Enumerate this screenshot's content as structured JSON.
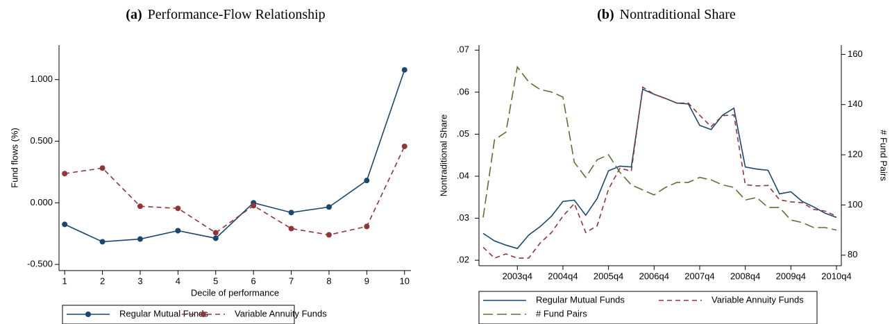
{
  "chart_data": [
    {
      "type": "line",
      "panel_label": "(a)",
      "title": "Performance-Flow Relationship",
      "xlabel": "Decile of performance",
      "ylabel": "Fund flows (%)",
      "x": [
        1,
        2,
        3,
        4,
        5,
        6,
        7,
        8,
        9,
        10
      ],
      "xlim": [
        0.85,
        10.17
      ],
      "xticks": [
        1,
        2,
        3,
        4,
        5,
        6,
        7,
        8,
        9,
        10
      ],
      "ylim": [
        -0.55,
        1.28
      ],
      "yticks": [
        {
          "value": -0.5,
          "label": "-0.500"
        },
        {
          "value": 0,
          "label": "0.000"
        },
        {
          "value": 0.5,
          "label": "0.500"
        },
        {
          "value": 1,
          "label": "1.000"
        }
      ],
      "markers": true,
      "series": [
        {
          "name": "Regular Mutual Funds",
          "color": "#1a476f",
          "line_style": "solid",
          "values": [
            -0.175,
            -0.316,
            -0.294,
            -0.226,
            -0.288,
            0.0,
            -0.079,
            -0.034,
            0.181,
            1.079
          ]
        },
        {
          "name": "Variable Annuity Funds",
          "color": "#90353b",
          "line_style": "dashed",
          "values": [
            0.237,
            0.282,
            -0.028,
            -0.045,
            -0.243,
            -0.023,
            -0.209,
            -0.26,
            -0.192,
            0.458
          ]
        }
      ]
    },
    {
      "type": "line",
      "panel_label": "(b)",
      "title": "Nontraditional Share",
      "ylabel": "Nontraditional Share",
      "y2label": "# Fund Pairs",
      "categories": [
        null,
        null,
        null,
        "2003q4",
        null,
        null,
        null,
        "2004q4",
        null,
        null,
        null,
        "2005q4",
        null,
        null,
        null,
        "2006q4",
        null,
        null,
        null,
        "2007q4",
        null,
        null,
        null,
        "2008q4",
        null,
        null,
        null,
        "2009q4",
        null,
        null,
        null,
        "2010q4"
      ],
      "ylim": [
        0.0187,
        0.0712
      ],
      "yticks": [
        {
          "value": 0.02,
          "label": ".02"
        },
        {
          "value": 0.03,
          "label": ".03"
        },
        {
          "value": 0.04,
          "label": ".04"
        },
        {
          "value": 0.05,
          "label": ".05"
        },
        {
          "value": 0.06,
          "label": ".06"
        },
        {
          "value": 0.07,
          "label": ".07"
        }
      ],
      "y2lim": [
        75.8,
        163.7
      ],
      "y2ticks": [
        80,
        100,
        120,
        140,
        160
      ],
      "markers": false,
      "series": [
        {
          "name": "Regular Mutual Funds",
          "color": "#1a476f",
          "line_style": "solid",
          "values": [
            0.0264,
            0.0246,
            0.0236,
            0.0228,
            0.026,
            0.028,
            0.0305,
            0.034,
            0.0343,
            0.0307,
            0.0347,
            0.0413,
            0.0424,
            0.0422,
            0.0607,
            0.0595,
            0.0585,
            0.0574,
            0.0572,
            0.0521,
            0.0511,
            0.0545,
            0.0562,
            0.0422,
            0.0417,
            0.0414,
            0.0358,
            0.0363,
            0.034,
            0.0327,
            0.0312,
            0.0302
          ]
        },
        {
          "name": "Variable Annuity Funds",
          "color": "#90353b",
          "line_style": "dashed",
          "values": [
            0.0231,
            0.0205,
            0.0215,
            0.0205,
            0.0205,
            0.0241,
            0.0266,
            0.0305,
            0.0335,
            0.0266,
            0.0282,
            0.0369,
            0.0419,
            0.0412,
            0.0612,
            0.0595,
            0.0585,
            0.0574,
            0.0574,
            0.0545,
            0.0518,
            0.0544,
            0.0546,
            0.038,
            0.0377,
            0.0378,
            0.0344,
            0.0339,
            0.0337,
            0.0321,
            0.0317,
            0.0305
          ]
        },
        {
          "name": "# Fund Pairs",
          "color": "#55752f",
          "line_style": "longdash",
          "axis": "y2",
          "values": [
            95,
            126,
            129,
            155,
            149,
            146,
            145,
            143,
            117,
            111,
            118,
            120,
            113,
            108,
            106,
            104,
            107,
            109,
            109,
            111,
            110,
            108,
            107,
            102,
            103,
            99,
            99,
            94,
            93,
            91,
            91,
            90
          ]
        }
      ]
    }
  ]
}
